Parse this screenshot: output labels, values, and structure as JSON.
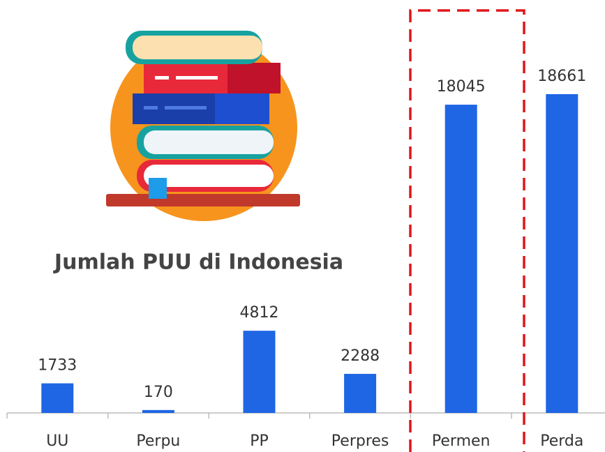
{
  "chart_data": {
    "type": "bar",
    "title": "Jumlah PUU di Indonesia",
    "categories": [
      "UU",
      "Perpu",
      "PP",
      "Perpres",
      "Permen",
      "Perda"
    ],
    "values": [
      1733,
      170,
      4812,
      2288,
      18045,
      18661
    ],
    "color": "#1f66e5"
  }
}
